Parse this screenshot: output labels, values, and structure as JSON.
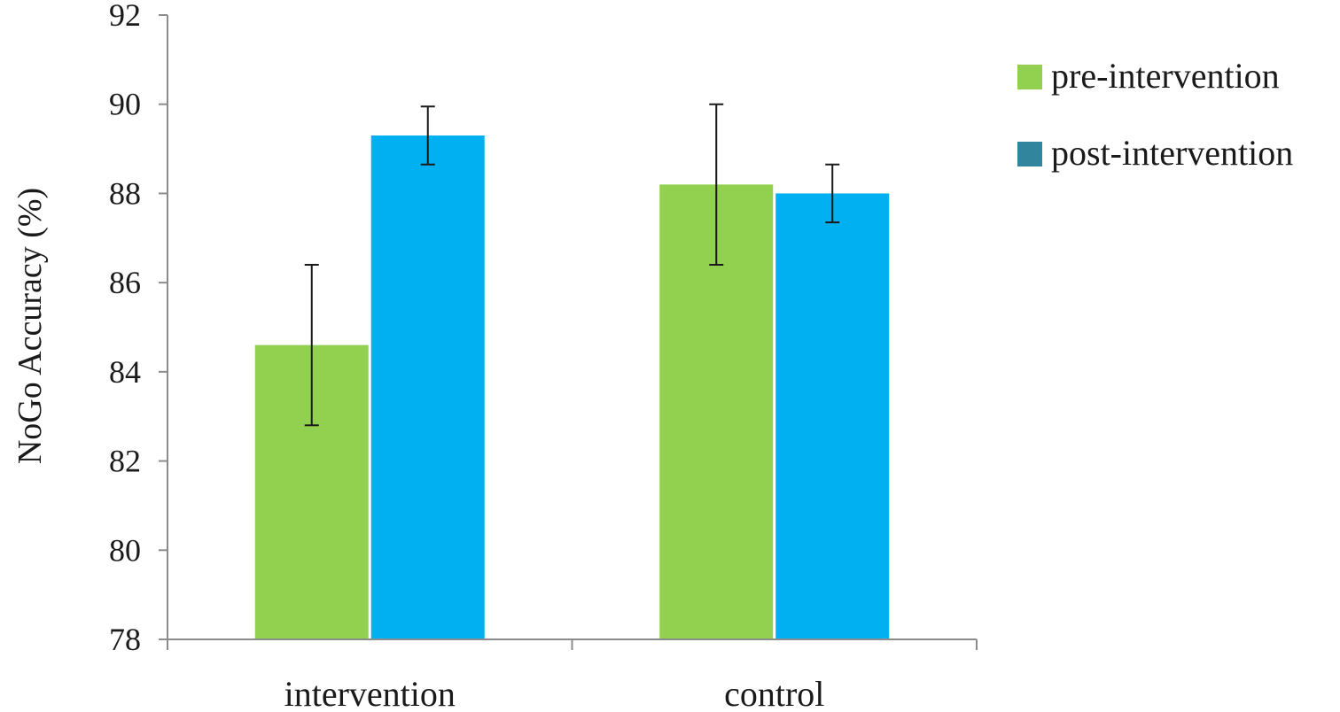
{
  "chart_data": {
    "type": "bar",
    "title": "",
    "xlabel": "",
    "ylabel": "NoGo Accuracy (%)",
    "ylim": [
      78,
      92
    ],
    "yticks": [
      78,
      80,
      82,
      84,
      86,
      88,
      90,
      92
    ],
    "grid": false,
    "legend_position": "top-right",
    "categories": [
      "intervention",
      "control"
    ],
    "series": [
      {
        "name": "pre-intervention",
        "color": "#92d050",
        "legend_color": "#92d050",
        "values": [
          84.6,
          88.2
        ],
        "error": [
          1.8,
          1.8
        ]
      },
      {
        "name": "post-intervention",
        "color": "#00b0f0",
        "legend_color": "#31859c",
        "values": [
          89.3,
          88.0
        ],
        "error": [
          0.65,
          0.65
        ]
      }
    ]
  }
}
